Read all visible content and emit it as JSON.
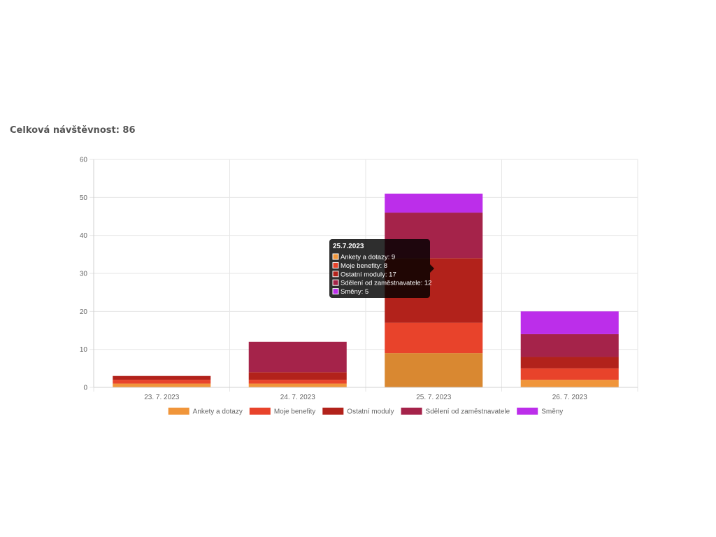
{
  "header": {
    "title": "Celková návštěvnost: 86"
  },
  "chart_data": {
    "type": "bar",
    "stacked": true,
    "categories": [
      "23. 7. 2023",
      "24. 7. 2023",
      "25. 7. 2023",
      "26. 7. 2023"
    ],
    "series": [
      {
        "name": "Ankety a dotazy",
        "color": "#F0953A",
        "values": [
          1,
          1,
          9,
          2
        ]
      },
      {
        "name": "Moje benefity",
        "color": "#E8432B",
        "values": [
          1,
          1,
          8,
          3
        ]
      },
      {
        "name": "Ostatní moduly",
        "color": "#B2221B",
        "values": [
          1,
          2,
          17,
          3
        ]
      },
      {
        "name": "Sdělení od zaměstnavatele",
        "color": "#A5234A",
        "values": [
          0,
          8,
          12,
          6
        ]
      },
      {
        "name": "Směny",
        "color": "#BC2EEA",
        "values": [
          0,
          0,
          5,
          6
        ]
      }
    ],
    "ylim": [
      0,
      60
    ],
    "yticks": [
      0,
      10,
      20,
      30,
      40,
      50,
      60
    ],
    "grid": true,
    "legend_position": "bottom",
    "tooltip": {
      "category_index": 2,
      "title": "25.7.2023",
      "lines": [
        "Ankety a dotazy: 9",
        "Moje benefity: 8",
        "Ostatní moduly: 17",
        "Sdělení od zaměstnavatele: 12",
        "Směny: 5"
      ]
    }
  }
}
